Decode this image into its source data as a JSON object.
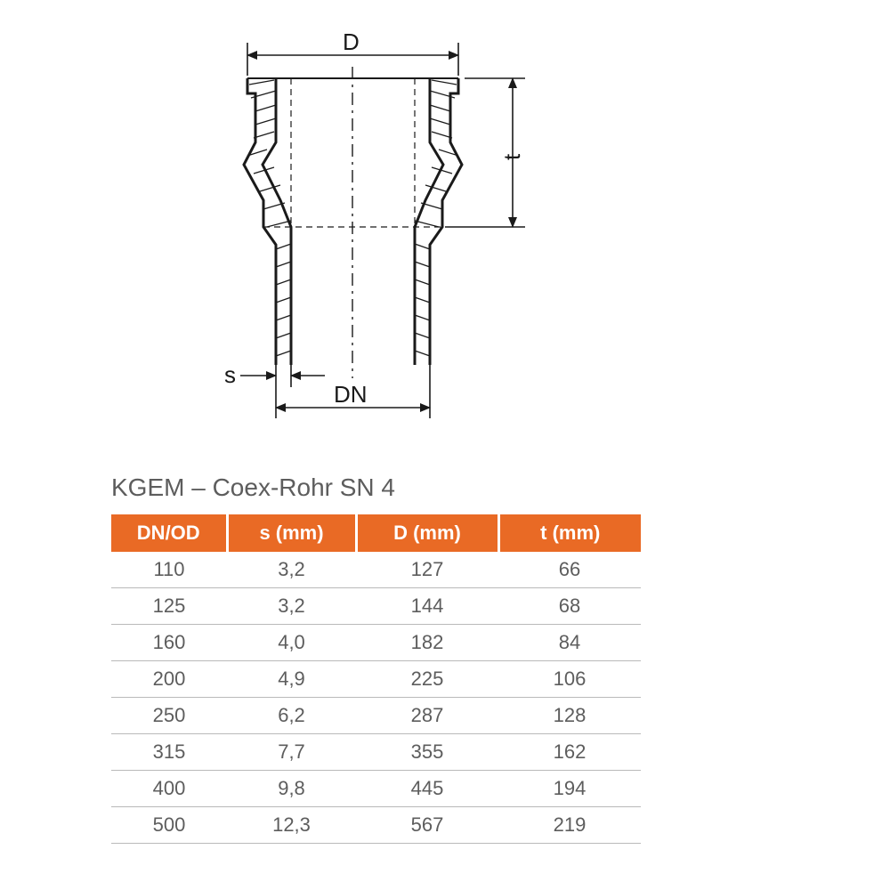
{
  "diagram": {
    "labels": {
      "D": "D",
      "t": "t",
      "s": "s",
      "DN": "DN"
    },
    "stroke_color": "#1a1a1a",
    "stroke_width_main": 2.5,
    "stroke_width_dim": 1.6,
    "dash_pattern": "8 5 2 5"
  },
  "table": {
    "title": "KGEM – Coex-Rohr SN 4",
    "header_bg": "#e96a25",
    "header_fg": "#ffffff",
    "row_fg": "#5d5d5d",
    "row_border": "#b9b9b9",
    "columns": [
      "DN/OD",
      "s (mm)",
      "D (mm)",
      "t (mm)"
    ],
    "rows": [
      [
        "110",
        "3,2",
        "127",
        "66"
      ],
      [
        "125",
        "3,2",
        "144",
        "68"
      ],
      [
        "160",
        "4,0",
        "182",
        "84"
      ],
      [
        "200",
        "4,9",
        "225",
        "106"
      ],
      [
        "250",
        "6,2",
        "287",
        "128"
      ],
      [
        "315",
        "7,7",
        "355",
        "162"
      ],
      [
        "400",
        "9,8",
        "445",
        "194"
      ],
      [
        "500",
        "12,3",
        "567",
        "219"
      ]
    ]
  }
}
